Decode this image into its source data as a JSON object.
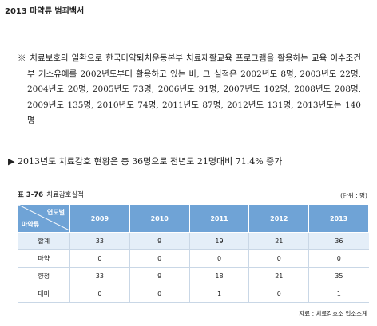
{
  "header": {
    "title": "2013 마약류 범죄백서"
  },
  "note": "※ 치료보호의 일환으로 한국마약퇴치운동본부 치료재활교육 프로그램을 활용하는 교육 이수조건부 기소유예를 2002년도부터 활용하고 있는 바, 그 실적은 2002년도 8명, 2003년도 22명, 2004년도 20명, 2005년도 73명, 2006년도 91명, 2007년도 102명, 2008년도 208명, 2009년도 135명, 2010년도 74명, 2011년도 87명, 2012년도 131명, 2013년도는 140명",
  "bullet": "▶ 2013년도 치료감호 현황은 총 36명으로 전년도 21명대비 71.4% 증가",
  "table": {
    "caption_no": "표 3-76",
    "caption": "치료감호실적",
    "unit": "(단위 : 명)",
    "corner_top": "연도별",
    "corner_bottom": "마약류",
    "columns": [
      "2009",
      "2010",
      "2011",
      "2012",
      "2013"
    ],
    "rows": [
      [
        "합계",
        33,
        9,
        19,
        21,
        36
      ],
      [
        "마약",
        0,
        0,
        0,
        0,
        0
      ],
      [
        "향정",
        33,
        9,
        18,
        21,
        35
      ],
      [
        "대마",
        0,
        0,
        1,
        0,
        1
      ]
    ],
    "source": "자료 : 치료감호소 입소소계"
  }
}
